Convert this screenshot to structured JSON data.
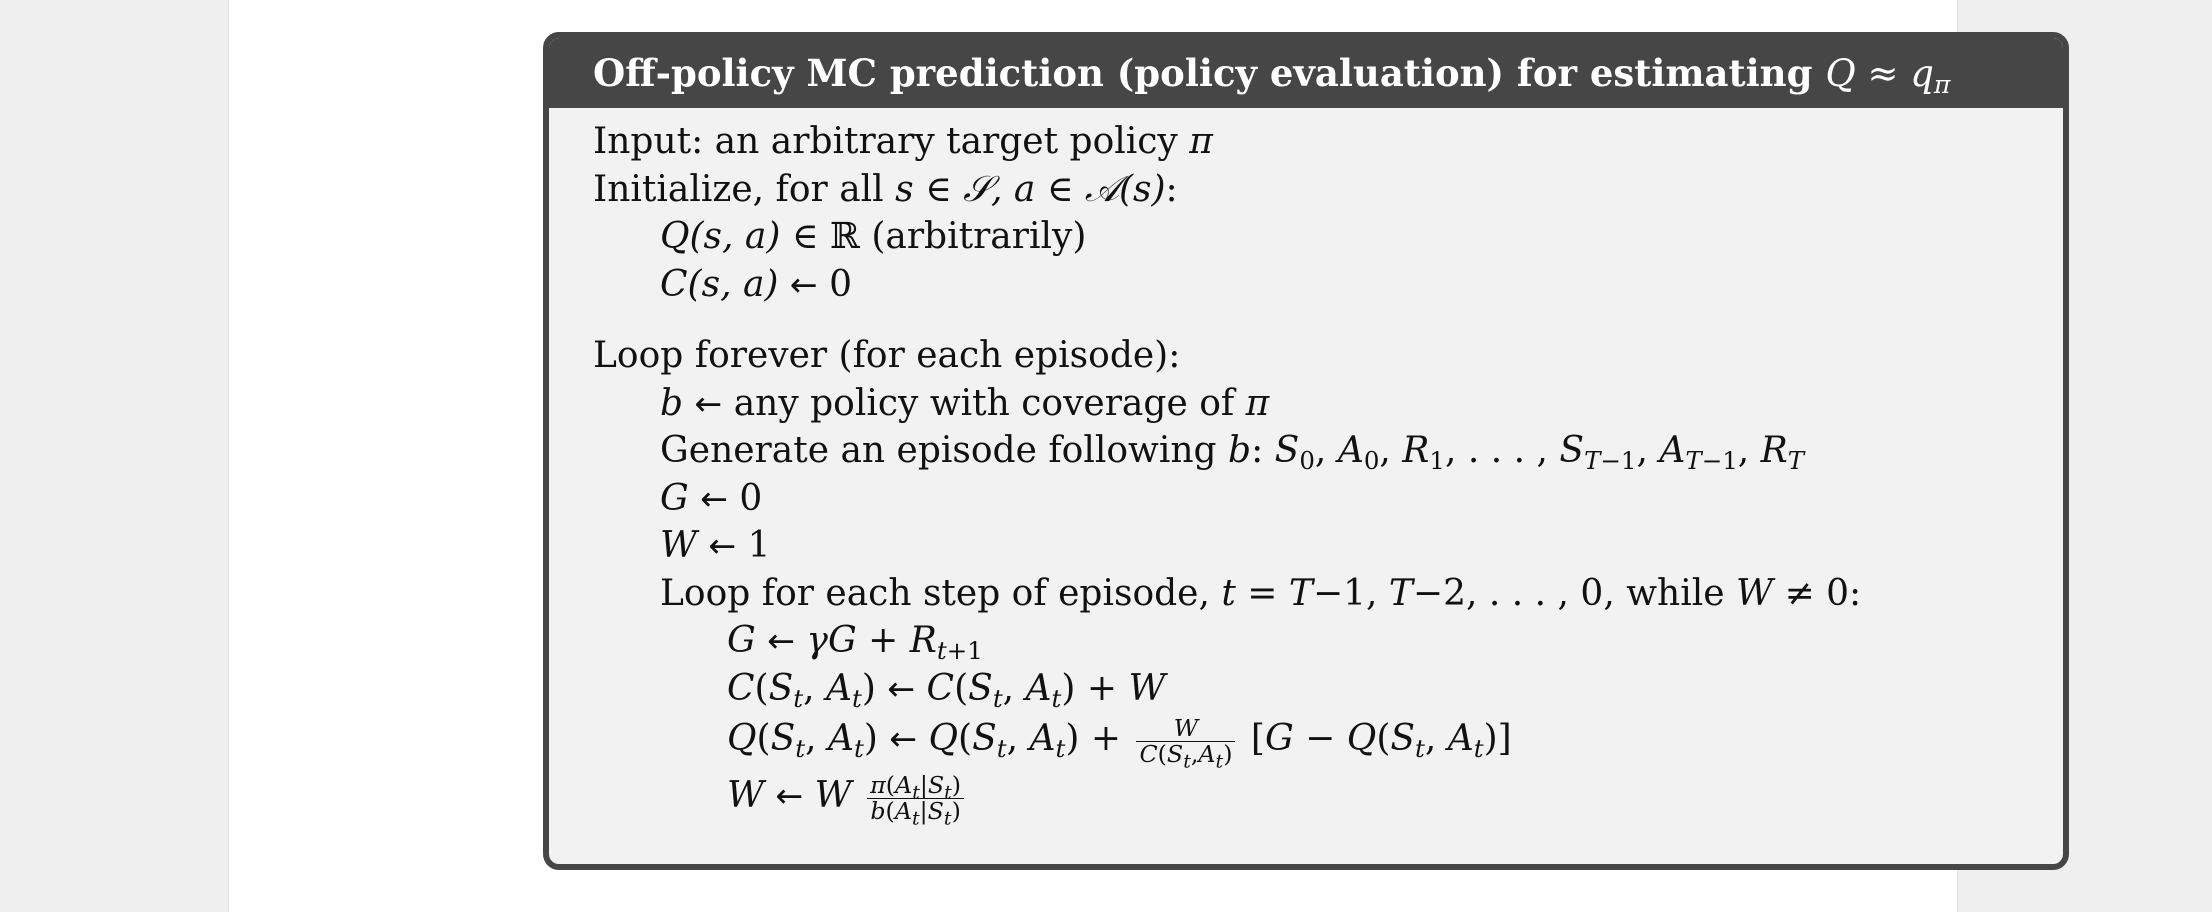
{
  "header": {
    "title_text": "Off-policy MC prediction (policy evaluation) for estimating",
    "title_math": "Q ≈ qπ"
  },
  "lines": {
    "input_label": "Input: an arbitrary target policy",
    "input_pi": "π",
    "init_label": "Initialize, for all",
    "loop_label": "Loop forever (for each episode):",
    "b_text": "any policy with coverage of",
    "gen_text": "Generate an episode following",
    "inner_loop_label": "Loop for each step of episode,",
    "while_text": "while"
  }
}
